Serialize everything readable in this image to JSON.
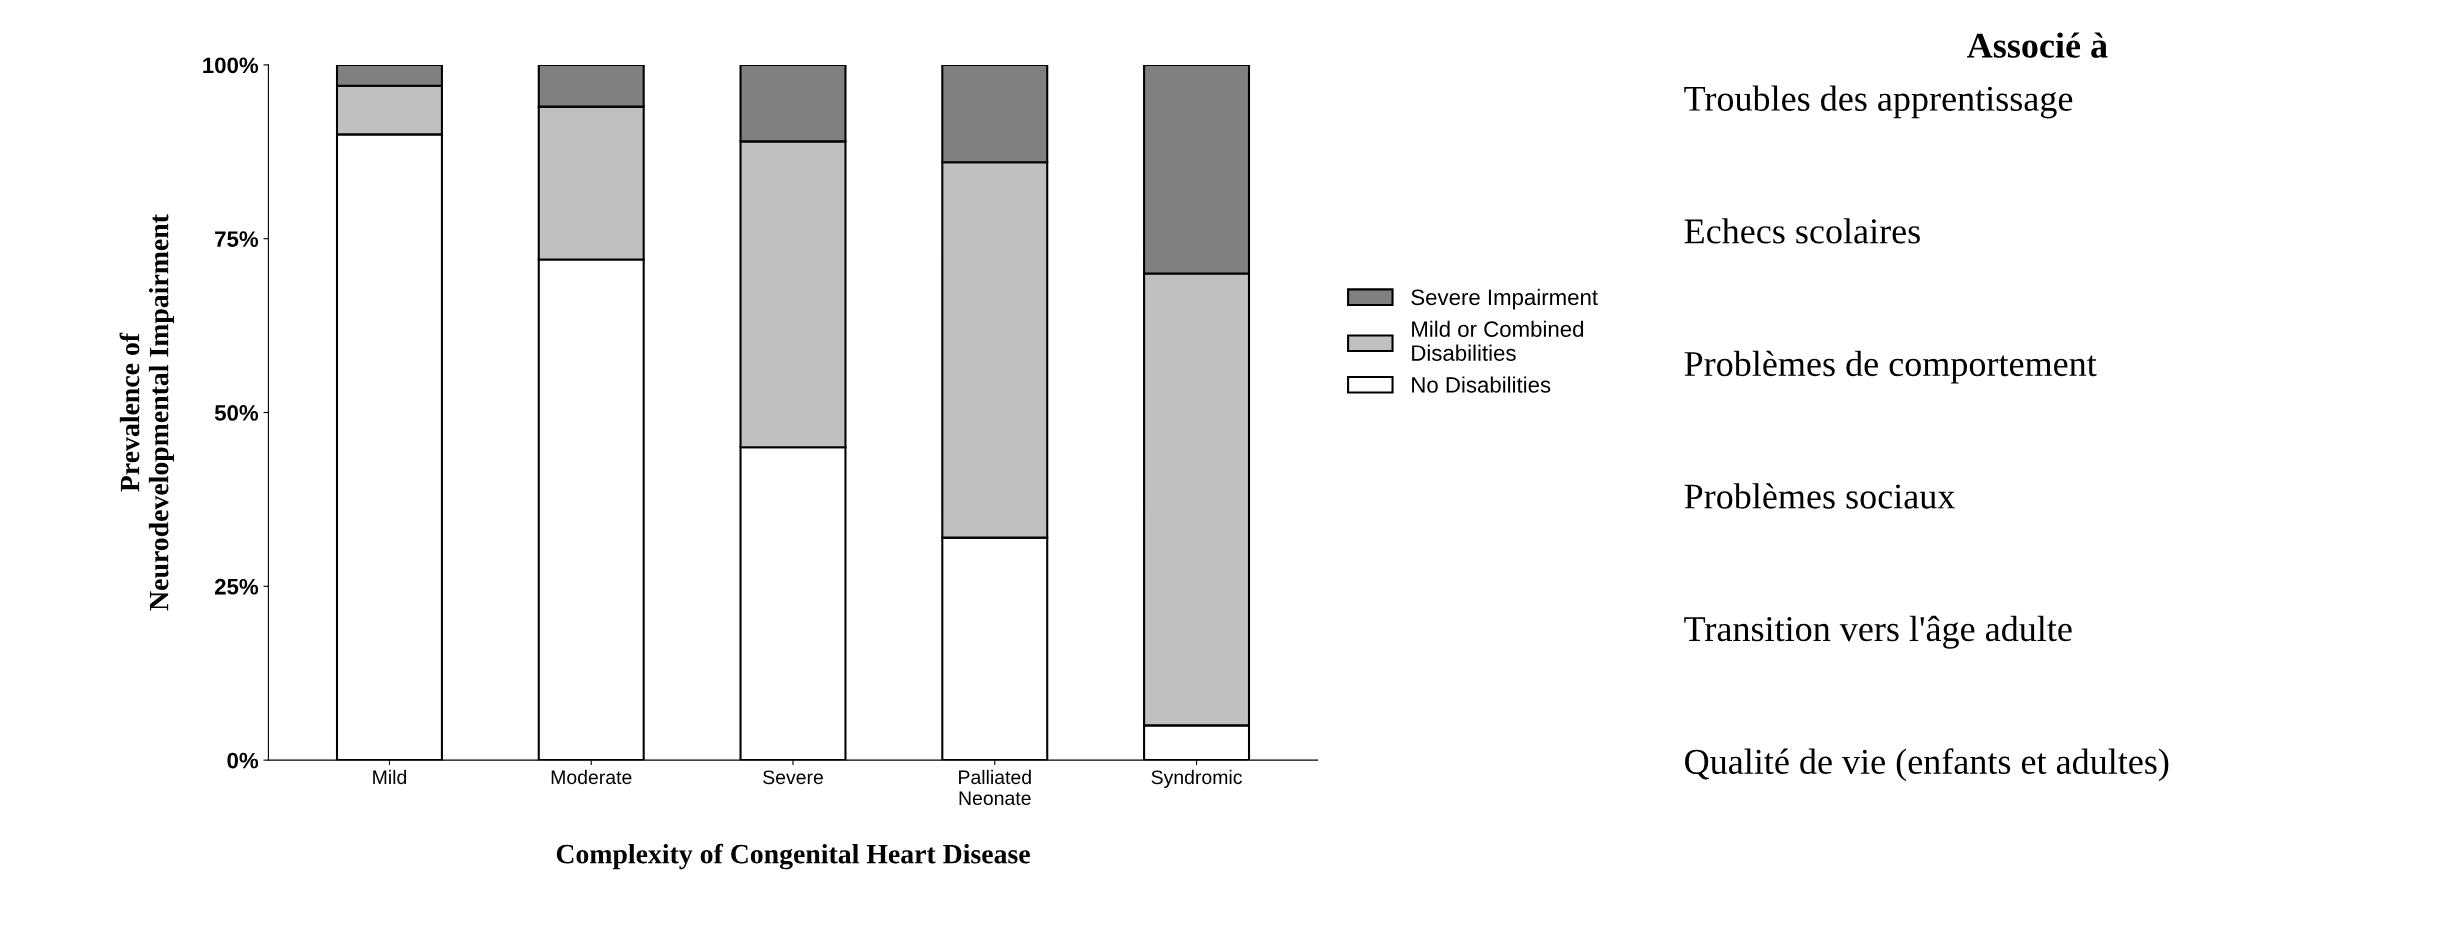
{
  "chart_data": {
    "type": "bar",
    "stacked": true,
    "xlabel": "Complexity of Congenital Heart Disease",
    "ylabel": "Prevalence of\nNeurodevelopmental Impairment",
    "categories": [
      "Mild",
      "Moderate",
      "Severe",
      "Palliated\nNeonate",
      "Syndromic"
    ],
    "series": [
      {
        "name": "No Disabilities",
        "color": "#ffffff",
        "values": [
          90,
          72,
          45,
          32,
          5
        ]
      },
      {
        "name": "Mild or Combined\nDisabilities",
        "color": "#c0c0c0",
        "values": [
          7,
          22,
          44,
          54,
          65
        ]
      },
      {
        "name": "Severe Impairment",
        "color": "#808080",
        "values": [
          3,
          6,
          11,
          14,
          30
        ]
      }
    ],
    "ylim": [
      0,
      100
    ],
    "yticks": [
      {
        "value": 0,
        "label": "0%"
      },
      {
        "value": 25,
        "label": "25%"
      },
      {
        "value": 50,
        "label": "50%"
      },
      {
        "value": 75,
        "label": "75%"
      },
      {
        "value": 100,
        "label": "100%"
      }
    ],
    "legend": "right",
    "annotations": [
      "Associé à",
      "Troubles des apprentissage",
      "Echecs scolaires",
      "Problèmes de comportement",
      "Problèmes sociaux",
      "Transition vers l'âge adulte",
      "Qualité de vie (enfants et adultes)"
    ]
  }
}
